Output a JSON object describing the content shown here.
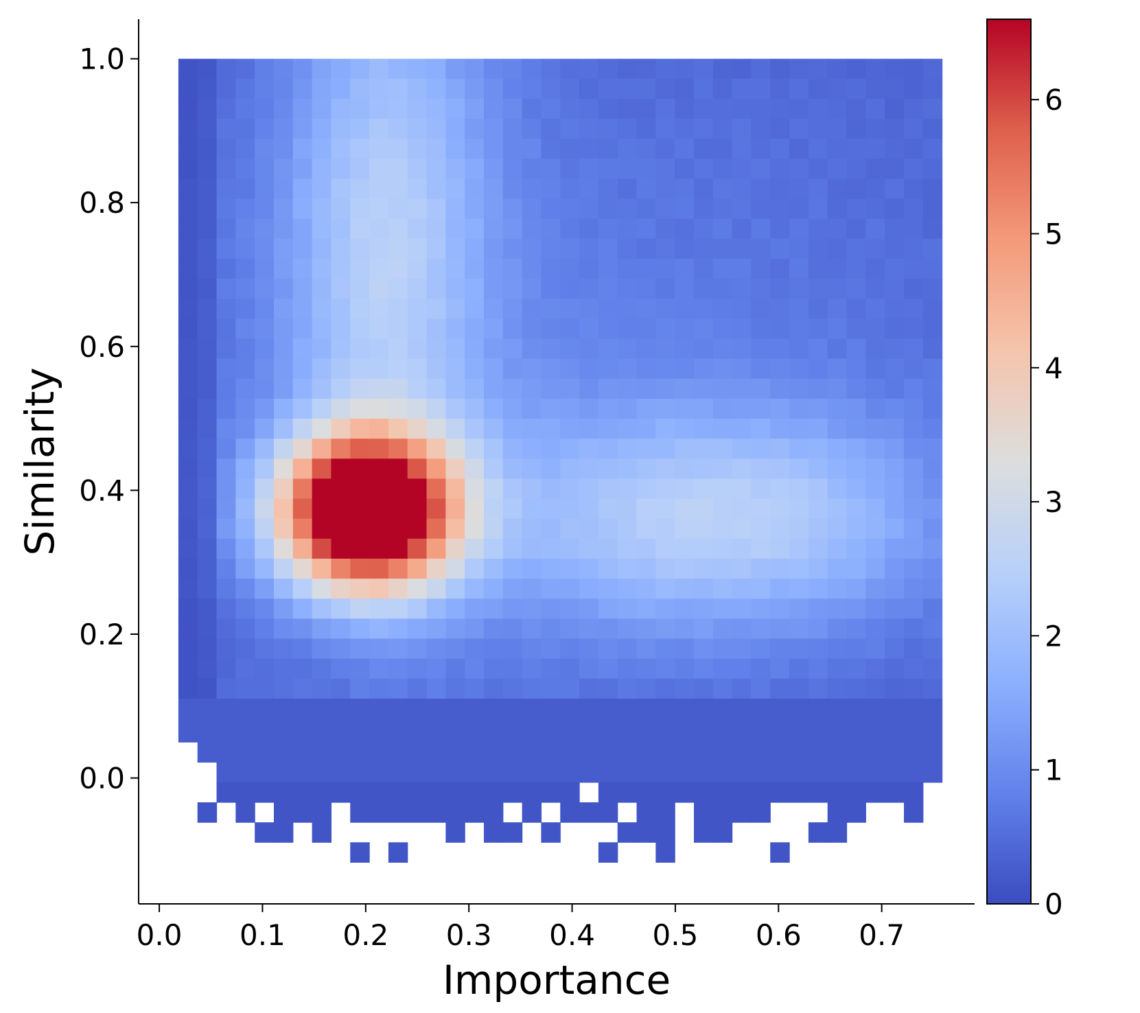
{
  "chart_data": {
    "type": "heatmap",
    "title": "",
    "xlabel": "Importance",
    "ylabel": "Similarity",
    "xlim": [
      -0.02,
      0.79
    ],
    "ylim": [
      -0.175,
      1.055
    ],
    "x_ticks": [
      "0.0",
      "0.1",
      "0.2",
      "0.3",
      "0.4",
      "0.5",
      "0.6",
      "0.7"
    ],
    "x_tick_values": [
      0.0,
      0.1,
      0.2,
      0.3,
      0.4,
      0.5,
      0.6,
      0.7
    ],
    "y_ticks": [
      "0.0",
      "0.2",
      "0.4",
      "0.6",
      "0.8",
      "1.0"
    ],
    "y_tick_values": [
      0.0,
      0.2,
      0.4,
      0.6,
      0.8,
      1.0
    ],
    "grid": false,
    "colormap": "coolwarm",
    "colorbar": {
      "min": 0,
      "max": 6.6,
      "ticks": [
        "0",
        "1",
        "2",
        "3",
        "4",
        "5",
        "6"
      ],
      "tick_values": [
        0,
        1,
        2,
        3,
        4,
        5,
        6
      ]
    },
    "bins": {
      "x_start": 0.0185,
      "x_width": 0.0185,
      "count_x": 40,
      "y_top": 1.0,
      "y_height": 0.0278,
      "count_y": 40
    },
    "density_peak": {
      "importance": 0.2,
      "similarity": 0.36,
      "value": 6.6
    },
    "column_extents": [
      {
        "i": 0,
        "bottom": 0.05
      },
      {
        "i": 1,
        "bottom": 0.022
      },
      {
        "i": 2,
        "bottom": -0.006
      },
      {
        "i": 3,
        "bottom": -0.006
      },
      {
        "i": 4,
        "bottom": -0.006
      },
      {
        "i": 5,
        "bottom": -0.006
      },
      {
        "i": 6,
        "bottom": -0.006
      },
      {
        "i": 7,
        "bottom": -0.006
      },
      {
        "i": 8,
        "bottom": -0.006
      },
      {
        "i": 9,
        "bottom": -0.006
      },
      {
        "i": 10,
        "bottom": -0.006
      },
      {
        "i": 11,
        "bottom": -0.006
      },
      {
        "i": 12,
        "bottom": -0.006
      },
      {
        "i": 13,
        "bottom": -0.006
      },
      {
        "i": 14,
        "bottom": -0.006
      },
      {
        "i": 15,
        "bottom": -0.006
      },
      {
        "i": 16,
        "bottom": -0.006
      },
      {
        "i": 17,
        "bottom": -0.006
      },
      {
        "i": 18,
        "bottom": -0.006
      },
      {
        "i": 19,
        "bottom": -0.006
      },
      {
        "i": 20,
        "bottom": -0.006
      },
      {
        "i": 21,
        "bottom": -0.006
      },
      {
        "i": 22,
        "bottom": -0.006
      },
      {
        "i": 23,
        "bottom": -0.006
      },
      {
        "i": 24,
        "bottom": -0.006
      },
      {
        "i": 25,
        "bottom": -0.006
      },
      {
        "i": 26,
        "bottom": -0.006
      },
      {
        "i": 27,
        "bottom": -0.006
      },
      {
        "i": 28,
        "bottom": -0.006
      },
      {
        "i": 29,
        "bottom": -0.006
      },
      {
        "i": 30,
        "bottom": -0.006
      },
      {
        "i": 31,
        "bottom": -0.006
      },
      {
        "i": 32,
        "bottom": -0.006
      },
      {
        "i": 33,
        "bottom": -0.006
      },
      {
        "i": 34,
        "bottom": -0.006
      },
      {
        "i": 35,
        "bottom": -0.006
      },
      {
        "i": 36,
        "bottom": -0.006
      },
      {
        "i": 37,
        "bottom": -0.006
      },
      {
        "i": 38,
        "bottom": -0.006
      },
      {
        "i": 39,
        "bottom": -0.006
      }
    ],
    "sparse_cells": [
      {
        "i": 2,
        "j": 0
      },
      {
        "i": 3,
        "j": 0
      },
      {
        "i": 4,
        "j": 0
      },
      {
        "i": 5,
        "j": 0
      },
      {
        "i": 6,
        "j": 0
      },
      {
        "i": 7,
        "j": 0
      },
      {
        "i": 8,
        "j": 0
      },
      {
        "i": 9,
        "j": 0
      },
      {
        "i": 10,
        "j": 0
      },
      {
        "i": 11,
        "j": 0
      },
      {
        "i": 12,
        "j": 0
      },
      {
        "i": 13,
        "j": 0
      },
      {
        "i": 14,
        "j": 0
      },
      {
        "i": 15,
        "j": 0
      },
      {
        "i": 16,
        "j": 0
      },
      {
        "i": 17,
        "j": 0
      },
      {
        "i": 18,
        "j": 0
      },
      {
        "i": 19,
        "j": 0
      },
      {
        "i": 20,
        "j": 0
      },
      {
        "i": 22,
        "j": 0
      },
      {
        "i": 23,
        "j": 0
      },
      {
        "i": 24,
        "j": 0
      },
      {
        "i": 25,
        "j": 0
      },
      {
        "i": 26,
        "j": 0
      },
      {
        "i": 27,
        "j": 0
      },
      {
        "i": 28,
        "j": 0
      },
      {
        "i": 29,
        "j": 0
      },
      {
        "i": 30,
        "j": 0
      },
      {
        "i": 31,
        "j": 0
      },
      {
        "i": 32,
        "j": 0
      },
      {
        "i": 33,
        "j": 0
      },
      {
        "i": 34,
        "j": 0
      },
      {
        "i": 35,
        "j": 0
      },
      {
        "i": 36,
        "j": 0
      },
      {
        "i": 37,
        "j": 0
      },
      {
        "i": 38,
        "j": 0
      },
      {
        "i": 1,
        "j": 1
      },
      {
        "i": 3,
        "j": 1
      },
      {
        "i": 5,
        "j": 1
      },
      {
        "i": 6,
        "j": 1
      },
      {
        "i": 7,
        "j": 1
      },
      {
        "i": 9,
        "j": 1
      },
      {
        "i": 10,
        "j": 1
      },
      {
        "i": 11,
        "j": 1
      },
      {
        "i": 12,
        "j": 1
      },
      {
        "i": 13,
        "j": 1
      },
      {
        "i": 14,
        "j": 1
      },
      {
        "i": 15,
        "j": 1
      },
      {
        "i": 16,
        "j": 1
      },
      {
        "i": 18,
        "j": 1
      },
      {
        "i": 20,
        "j": 1
      },
      {
        "i": 21,
        "j": 1
      },
      {
        "i": 22,
        "j": 1
      },
      {
        "i": 24,
        "j": 1
      },
      {
        "i": 25,
        "j": 1
      },
      {
        "i": 27,
        "j": 1
      },
      {
        "i": 28,
        "j": 1
      },
      {
        "i": 29,
        "j": 1
      },
      {
        "i": 30,
        "j": 1
      },
      {
        "i": 34,
        "j": 1
      },
      {
        "i": 35,
        "j": 1
      },
      {
        "i": 38,
        "j": 1
      },
      {
        "i": 4,
        "j": 2
      },
      {
        "i": 5,
        "j": 2
      },
      {
        "i": 7,
        "j": 2
      },
      {
        "i": 14,
        "j": 2
      },
      {
        "i": 16,
        "j": 2
      },
      {
        "i": 17,
        "j": 2
      },
      {
        "i": 19,
        "j": 2
      },
      {
        "i": 23,
        "j": 2
      },
      {
        "i": 24,
        "j": 2
      },
      {
        "i": 25,
        "j": 2
      },
      {
        "i": 27,
        "j": 2
      },
      {
        "i": 28,
        "j": 2
      },
      {
        "i": 33,
        "j": 2
      },
      {
        "i": 34,
        "j": 2
      },
      {
        "i": 9,
        "j": 3
      },
      {
        "i": 11,
        "j": 3
      },
      {
        "i": 22,
        "j": 3
      },
      {
        "i": 25,
        "j": 3
      },
      {
        "i": 31,
        "j": 3
      }
    ]
  }
}
